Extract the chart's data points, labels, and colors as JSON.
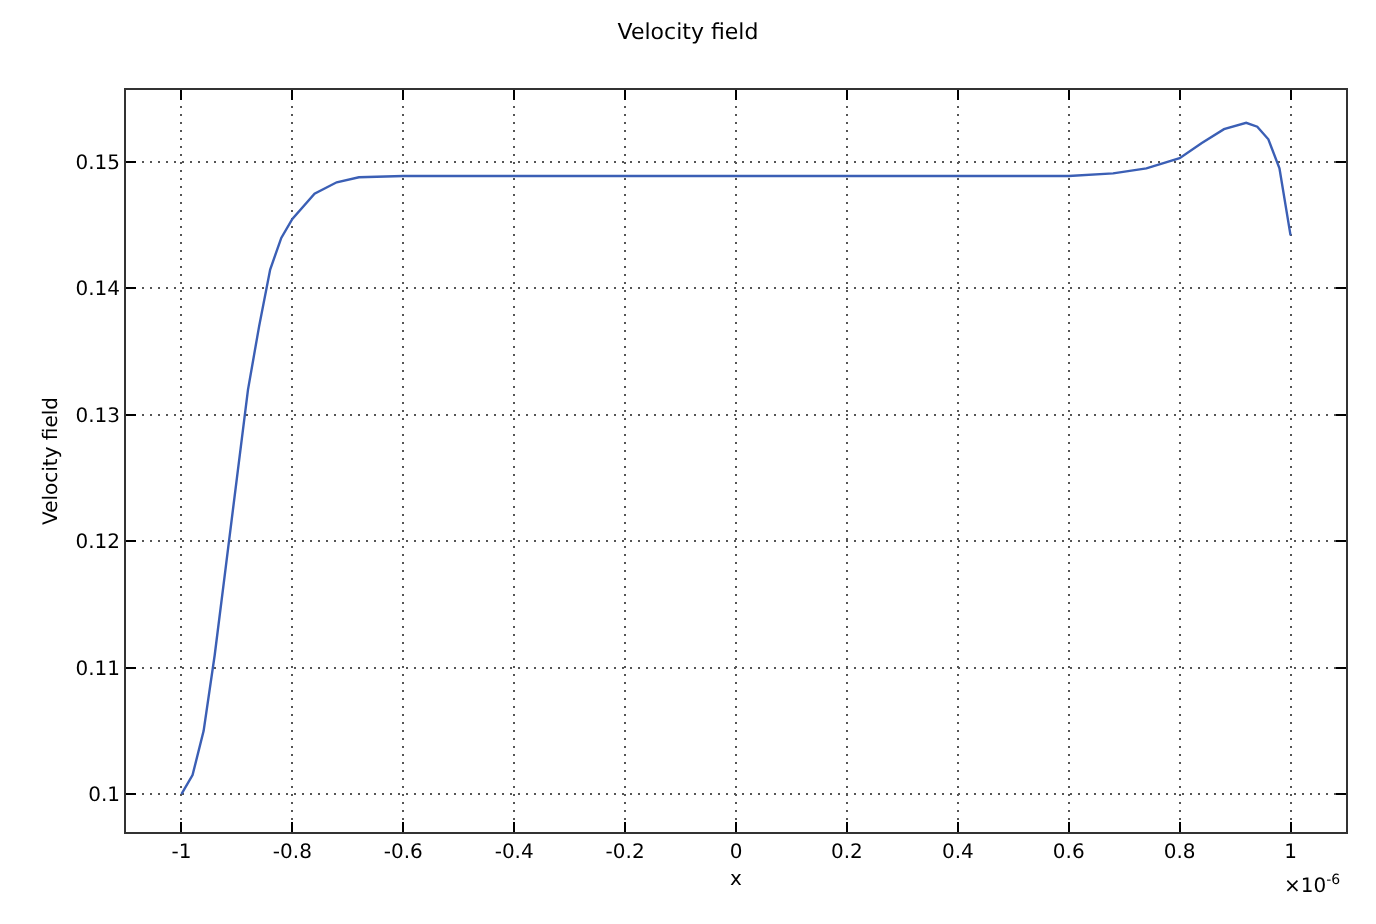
{
  "chart_data": {
    "type": "line",
    "title": "Velocity field",
    "xlabel": "x",
    "ylabel": "Velocity field",
    "annotations": [
      "×10$^{-6}$"
    ],
    "x": [
      -1,
      -0.98,
      -0.96,
      -0.94,
      -0.92,
      -0.9,
      -0.88,
      -0.86,
      -0.84,
      -0.82,
      -0.8,
      -0.76,
      -0.72,
      -0.68,
      -0.6,
      0.6,
      0.68,
      0.74,
      0.8,
      0.84,
      0.88,
      0.92,
      0.94,
      0.96,
      0.98,
      1
    ],
    "series": [
      {
        "color": "#3b5fb5",
        "values": [
          0.1,
          0.1015,
          0.105,
          0.111,
          0.118,
          0.125,
          0.132,
          0.137,
          0.1415,
          0.144,
          0.1455,
          0.1475,
          0.1484,
          0.1488,
          0.1489,
          0.1489,
          0.1491,
          0.1495,
          0.1503,
          0.1515,
          0.1526,
          0.1531,
          0.1528,
          0.1518,
          0.1495,
          0.1442
        ]
      }
    ],
    "xlim": [
      -1.1,
      1.1
    ],
    "xticks": [
      -1,
      -0.8,
      -0.6,
      -0.4,
      -0.2,
      0,
      0.2,
      0.4,
      0.6,
      0.8,
      1
    ],
    "ylim": [
      0.097,
      0.1557
    ],
    "yticks": [
      0.1,
      0.11,
      0.12,
      0.13,
      0.14,
      0.15
    ],
    "grid": true,
    "marker": "none",
    "line_style": "solid"
  }
}
